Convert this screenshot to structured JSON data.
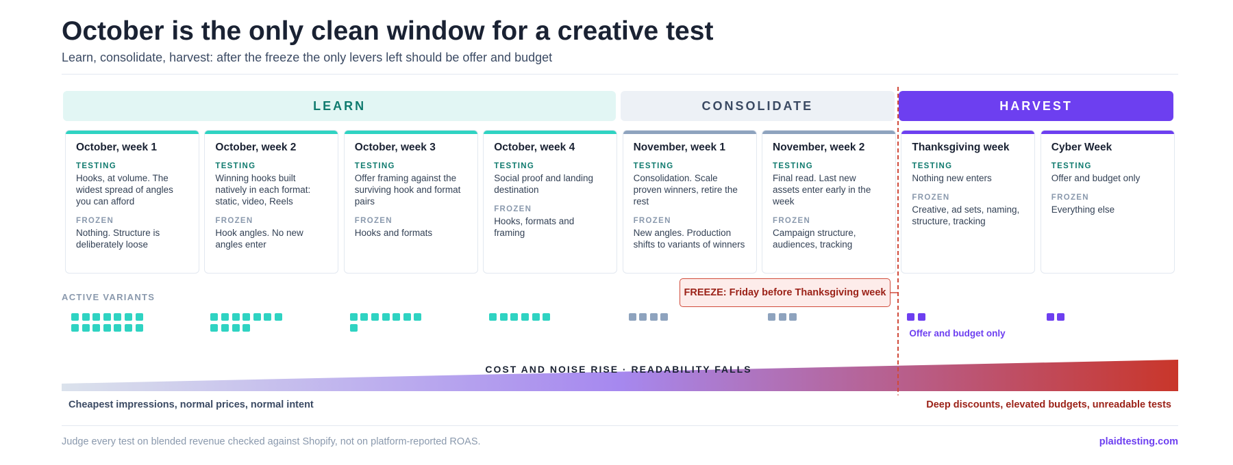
{
  "header": {
    "title": "October is the only clean window for a creative test",
    "subtitle": "Learn, consolidate, harvest: after the freeze the only levers left should be offer and budget"
  },
  "labels": {
    "testing": "TESTING",
    "frozen": "FROZEN",
    "active_variants": "ACTIVE VARIANTS"
  },
  "phases": [
    {
      "label": "LEARN",
      "weeks": [
        {
          "title": "October, week 1",
          "testing": "Hooks, at volume. The widest spread of angles you can afford",
          "frozen": "Nothing. Structure is deliberately loose",
          "active_variants": 14
        },
        {
          "title": "October, week 2",
          "testing": "Winning hooks built natively in each format: static, video, Reels",
          "frozen": "Hook angles. No new angles enter",
          "active_variants": 11
        },
        {
          "title": "October, week 3",
          "testing": "Offer framing against the surviving hook and format pairs",
          "frozen": "Hooks and formats",
          "active_variants": 8
        },
        {
          "title": "October, week 4",
          "testing": "Social proof and landing destination",
          "frozen": "Hooks, formats and framing",
          "active_variants": 6
        }
      ]
    },
    {
      "label": "CONSOLIDATE",
      "weeks": [
        {
          "title": "November, week 1",
          "testing": "Consolidation. Scale proven winners, retire the rest",
          "frozen": "New angles. Production shifts to variants of winners",
          "active_variants": 4
        },
        {
          "title": "November, week 2",
          "testing": "Final read. Last new assets enter early in the week",
          "frozen": "Campaign structure, audiences, tracking",
          "active_variants": 3
        }
      ]
    },
    {
      "label": "HARVEST",
      "weeks": [
        {
          "title": "Thanksgiving week",
          "testing": "Nothing new enters",
          "frozen": "Creative, ad sets, naming, structure, tracking",
          "active_variants": 2,
          "note": "Offer and budget only"
        },
        {
          "title": "Cyber Week",
          "testing": "Offer and budget only",
          "frozen": "Everything else",
          "active_variants": 2
        }
      ]
    }
  ],
  "freeze_label": "FREEZE: Friday before Thanksgiving week",
  "gradient": {
    "label": "COST AND NOISE RISE · READABILITY FALLS",
    "left": "Cheapest impressions, normal prices, normal intent",
    "right": "Deep discounts, elevated budgets, unreadable tests"
  },
  "footer": {
    "note": "Judge every test on blended revenue checked against Shopify, not on platform-reported ROAS.",
    "source": "plaidtesting.com"
  }
}
